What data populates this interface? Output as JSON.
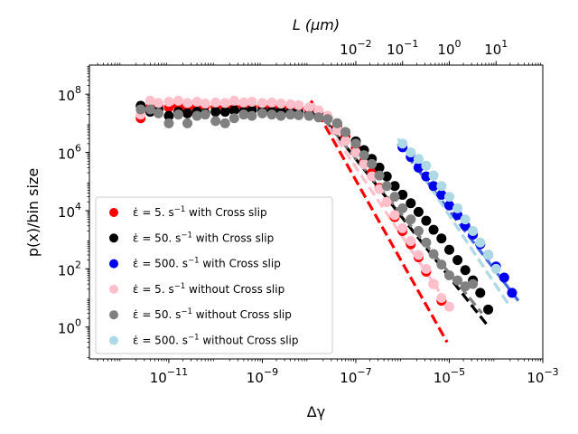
{
  "chart_data": {
    "type": "scatter",
    "title": "",
    "xscale": "log",
    "yscale": "log",
    "xlim": [
      2e-13,
      0.001
    ],
    "ylim": [
      0.08,
      1000000000.0
    ],
    "xlabel": "Δγ",
    "ylabel": "p(x)/bin size",
    "top_axis": {
      "label": "L (μm)",
      "scale": "log",
      "mapping_note": "L = 100000 * Δγ",
      "tick_values": [
        0.01,
        0.1,
        1,
        10
      ],
      "tick_labels": [
        {
          "base": "10",
          "exp": "−2"
        },
        {
          "base": "10",
          "exp": "−1"
        },
        {
          "base": "10",
          "exp": "0"
        },
        {
          "base": "10",
          "exp": "1"
        }
      ]
    },
    "x_ticks": [
      {
        "value": 1e-11,
        "base": "10",
        "exp": "−11"
      },
      {
        "value": 1e-09,
        "base": "10",
        "exp": "−9"
      },
      {
        "value": 1e-07,
        "base": "10",
        "exp": "−7"
      },
      {
        "value": 1e-05,
        "base": "10",
        "exp": "−5"
      },
      {
        "value": 0.001,
        "base": "10",
        "exp": "−3"
      }
    ],
    "y_ticks": [
      {
        "value": 1,
        "base": "10",
        "exp": "0"
      },
      {
        "value": 100,
        "base": "10",
        "exp": "2"
      },
      {
        "value": 10000,
        "base": "10",
        "exp": "4"
      },
      {
        "value": 1000000,
        "base": "10",
        "exp": "6"
      },
      {
        "value": 100000000,
        "base": "10",
        "exp": "8"
      }
    ],
    "legend_position": "lower-left",
    "legend": [
      {
        "series": "red",
        "rate": "5",
        "suffix": " with Cross slip"
      },
      {
        "series": "black",
        "rate": "50",
        "suffix": " with Cross slip"
      },
      {
        "series": "blue",
        "rate": "500",
        "suffix": " with Cross slip"
      },
      {
        "series": "pink",
        "rate": "5",
        "suffix": " without Cross slip"
      },
      {
        "series": "gray",
        "rate": "50",
        "suffix": " without Cross slip"
      },
      {
        "series": "lightblue",
        "rate": "500",
        "suffix": " without Cross slip"
      }
    ],
    "legend_symbols": {
      "epsilon_dot": "ε̇",
      "equals": " = ",
      "unit": ". s",
      "unit_exp": "−1"
    },
    "series": [
      {
        "name": "ε̇=5 s^-1 with Cross slip",
        "color": "#ff0000",
        "x": [
          2.5e-12,
          4e-12,
          6e-12,
          1e-11,
          1.6e-11,
          2.5e-11,
          4e-11,
          6e-11,
          1e-10,
          1.6e-10,
          2.5e-10,
          4e-10,
          6e-10,
          1e-09,
          1.6e-09,
          2.5e-09,
          4e-09,
          6e-09,
          1e-08,
          1.6e-08,
          2.5e-08,
          4e-08,
          6e-08,
          1e-07,
          1.5e-07,
          2.2e-07,
          3.2e-07,
          4.6e-07,
          6.8e-07,
          1e-06,
          1.5e-06,
          2.2e-06,
          3.2e-06,
          4.6e-06,
          6.8e-06
        ],
        "y": [
          15000000.0,
          35000000.0,
          40000000.0,
          35000000.0,
          40000000.0,
          32000000.0,
          38000000.0,
          40000000.0,
          35000000.0,
          38000000.0,
          32000000.0,
          40000000.0,
          36000000.0,
          38000000.0,
          35000000.0,
          38000000.0,
          33000000.0,
          35000000.0,
          30000000.0,
          25000000.0,
          16000000.0,
          8000000.0,
          3500000.0,
          1400000.0,
          500000.0,
          200000.0,
          60000.0,
          20000.0,
          6000,
          2000,
          700,
          250,
          80,
          30,
          8
        ]
      },
      {
        "name": "ε̇=50 s^-1 with Cross slip",
        "color": "#000000",
        "x": [
          2.5e-12,
          4e-12,
          6e-12,
          1e-11,
          1.6e-11,
          2.5e-11,
          4e-11,
          6e-11,
          1e-10,
          1.6e-10,
          2.5e-10,
          4e-10,
          6e-10,
          1e-09,
          1.6e-09,
          2.5e-09,
          4e-09,
          6e-09,
          1e-08,
          1.6e-08,
          2.5e-08,
          4e-08,
          6e-08,
          1e-07,
          1.5e-07,
          2.2e-07,
          3.2e-07,
          4.6e-07,
          6.8e-07,
          1e-06,
          1.5e-06,
          2.2e-06,
          3.2e-06,
          4.6e-06,
          6.8e-06,
          1e-05,
          1.5e-05,
          2.2e-05,
          3.2e-05,
          4.6e-05,
          6.8e-05
        ],
        "y": [
          40000000.0,
          25000000.0,
          30000000.0,
          18000000.0,
          25000000.0,
          22000000.0,
          25000000.0,
          22000000.0,
          25000000.0,
          25000000.0,
          28000000.0,
          25000000.0,
          28000000.0,
          27000000.0,
          25000000.0,
          26000000.0,
          24000000.0,
          23000000.0,
          20000000.0,
          18000000.0,
          15000000.0,
          10000000.0,
          5000000.0,
          2400000.0,
          1200000.0,
          600000.0,
          300000.0,
          150000.0,
          70000.0,
          35000.0,
          18000.0,
          9000,
          4500,
          2200,
          1100,
          450,
          200,
          90,
          40,
          15,
          4
        ]
      },
      {
        "name": "ε̇=500 s^-1 with Cross slip",
        "color": "#0000ee",
        "x": [
          1e-06,
          1.5e-06,
          2.2e-06,
          3.2e-06,
          4.6e-06,
          6.8e-06,
          1e-05,
          1.5e-05,
          2.2e-05,
          3.2e-05,
          4.6e-05,
          6.8e-05,
          0.0001,
          0.00015,
          0.00022
        ],
        "y": [
          1500000.0,
          700000.0,
          300000.0,
          150000.0,
          70000.0,
          35000.0,
          15000.0,
          7000,
          3000,
          1500,
          700,
          300,
          120,
          50,
          15
        ]
      },
      {
        "name": "ε̇=5 s^-1 without Cross slip",
        "color": "#ffc0cb",
        "x": [
          2.5e-12,
          4e-12,
          6e-12,
          1e-11,
          1.6e-11,
          2.5e-11,
          4e-11,
          6e-11,
          1e-10,
          1.6e-10,
          2.5e-10,
          4e-10,
          6e-10,
          1e-09,
          1.6e-09,
          2.5e-09,
          4e-09,
          6e-09,
          1e-08,
          1.6e-08,
          2.5e-08,
          4e-08,
          6e-08,
          1e-07,
          1.5e-07,
          2.2e-07,
          3.2e-07,
          4.6e-07,
          6.8e-07,
          1e-06,
          1.5e-06,
          2.2e-06,
          3.2e-06,
          4.6e-06,
          6.8e-06,
          1e-05
        ],
        "y": [
          20000000.0,
          60000000.0,
          50000000.0,
          55000000.0,
          60000000.0,
          50000000.0,
          55000000.0,
          48000000.0,
          52000000.0,
          50000000.0,
          60000000.0,
          52000000.0,
          55000000.0,
          50000000.0,
          52000000.0,
          48000000.0,
          45000000.0,
          42000000.0,
          35000000.0,
          28000000.0,
          18000000.0,
          6000000.0,
          2500000.0,
          1000000.0,
          400000.0,
          150000.0,
          55000.0,
          20000.0,
          7000,
          2500,
          900,
          300,
          100,
          30,
          10,
          5
        ]
      },
      {
        "name": "ε̇=50 s^-1 without Cross slip",
        "color": "#808080",
        "x": [
          2.5e-12,
          4e-12,
          6e-12,
          1e-11,
          1.6e-11,
          2.5e-11,
          4e-11,
          6e-11,
          1e-10,
          1.6e-10,
          2.5e-10,
          4e-10,
          6e-10,
          1e-09,
          1.6e-09,
          2.5e-09,
          4e-09,
          6e-09,
          1e-08,
          1.6e-08,
          2.5e-08,
          4e-08,
          6e-08,
          1e-07,
          1.5e-07,
          2.2e-07,
          3.2e-07,
          4.6e-07,
          6.8e-07,
          1e-06,
          1.5e-06,
          2.2e-06,
          3.2e-06,
          4.6e-06,
          6.8e-06,
          1e-05,
          1.5e-05,
          2.2e-05,
          3.2e-05
        ],
        "y": [
          30000000.0,
          30000000.0,
          22000000.0,
          10000000.0,
          20000000.0,
          10000000.0,
          18000000.0,
          20000000.0,
          12000000.0,
          10000000.0,
          15000000.0,
          20000000.0,
          18000000.0,
          22000000.0,
          20000000.0,
          18000000.0,
          20000000.0,
          19000000.0,
          18000000.0,
          16000000.0,
          14000000.0,
          10000000.0,
          5000000.0,
          2000000.0,
          800000.0,
          400000.0,
          160000.0,
          70000.0,
          30000.0,
          12000.0,
          5000,
          2000,
          800,
          320,
          140,
          60,
          40,
          25,
          30
        ]
      },
      {
        "name": "ε̇=500 s^-1 without Cross slip",
        "color": "#add8e6",
        "x": [
          1e-06,
          1.5e-06,
          2.2e-06,
          3.2e-06,
          4.6e-06,
          6.8e-06,
          1e-05,
          1.5e-05,
          2.2e-05,
          3.2e-05,
          4.6e-05,
          6.8e-05,
          0.0001
        ],
        "y": [
          2000000.0,
          1000000.0,
          600000.0,
          350000.0,
          160000.0,
          70000.0,
          30000.0,
          12000.0,
          5000,
          2000,
          800,
          300,
          100
        ]
      }
    ],
    "fit_lines": [
      {
        "color": "#ff0000",
        "x": [
          1.1e-08,
          9e-06
        ],
        "y": [
          60000000.0,
          0.3
        ]
      },
      {
        "color": "#000000",
        "x": [
          2.5e-08,
          7e-05
        ],
        "y": [
          10000000.0,
          1
        ]
      },
      {
        "color": "#4169e1",
        "x": [
          8e-07,
          0.0003
        ],
        "y": [
          2000000.0,
          8
        ]
      },
      {
        "color": "#ffc0cb",
        "x": [
          1.2e-08,
          1e-05
        ],
        "y": [
          50000000.0,
          5
        ]
      },
      {
        "color": "#808080",
        "x": [
          2e-08,
          5e-05
        ],
        "y": [
          15000000.0,
          3
        ]
      },
      {
        "color": "#add8e6",
        "x": [
          8e-07,
          0.0002
        ],
        "y": [
          3000000.0,
          5
        ]
      }
    ]
  }
}
